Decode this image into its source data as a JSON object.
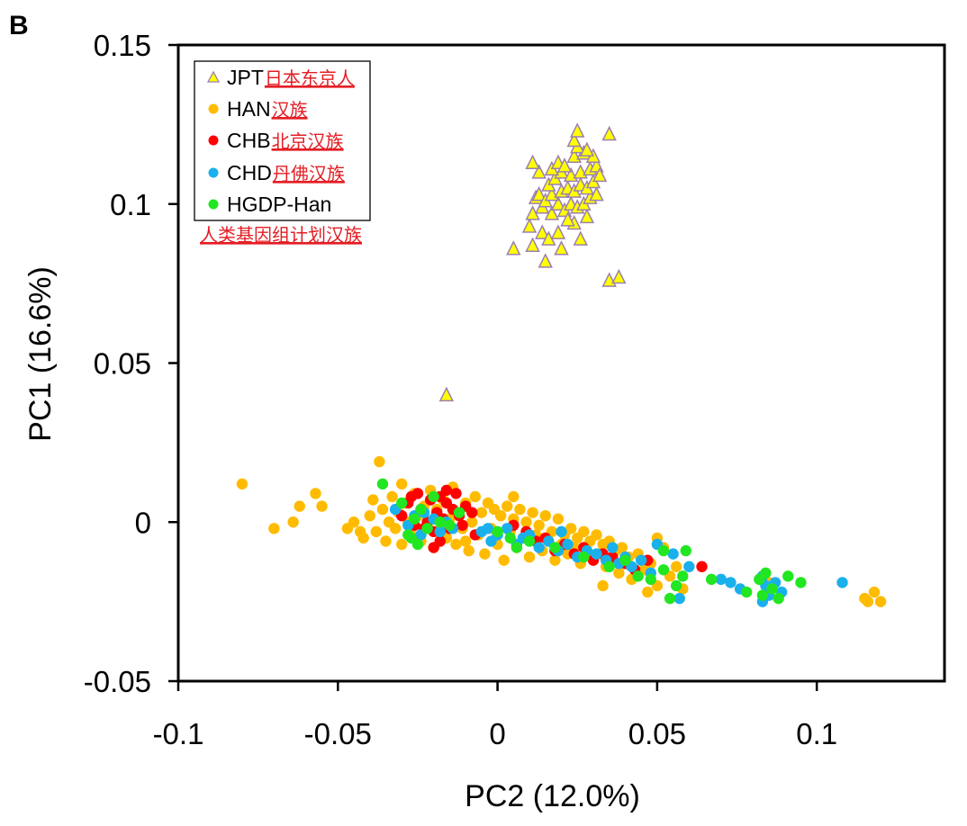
{
  "panel_label": "B",
  "colors": {
    "JPT": "#ffff00",
    "JPT_edge": "#9b7fb0",
    "HAN": "#ffbb00",
    "CHB": "#ff0000",
    "CHD": "#1ab0ec",
    "HGDP-Han": "#22e622",
    "annotation": "#e31e24"
  },
  "legend": {
    "placement": "top-left",
    "entries": [
      {
        "label": "JPT",
        "annotation": "日本东京人",
        "marker": "triangle-icon"
      },
      {
        "label": "HAN",
        "annotation": "汉族",
        "marker": "circle-icon"
      },
      {
        "label": "CHB",
        "annotation": "北京汉族",
        "marker": "circle-icon"
      },
      {
        "label": "CHD",
        "annotation": "丹佛汉族",
        "marker": "circle-icon"
      },
      {
        "label": "HGDP-Han",
        "annotation": "人类基因组计划汉族",
        "marker": "circle-icon"
      }
    ]
  },
  "chart_data": {
    "type": "scatter",
    "title": "",
    "xlabel": "PC2 (12.0%)",
    "ylabel": "PC1 (16.6%)",
    "xlim": [
      -0.1,
      0.14
    ],
    "ylim": [
      -0.05,
      0.15
    ],
    "xticks": [
      "-0.1",
      "-0.05",
      "0",
      "0.05",
      "0.1"
    ],
    "xtick_values": [
      -0.1,
      -0.05,
      0,
      0.05,
      0.1
    ],
    "yticks": [
      "0.15",
      "0.1",
      "0.05",
      "0",
      "-0.05"
    ],
    "ytick_values": [
      0.15,
      0.1,
      0.05,
      0,
      -0.05
    ],
    "grid": false,
    "series": [
      {
        "name": "HAN",
        "points": [
          [
            -0.08,
            0.012
          ],
          [
            -0.07,
            -0.002
          ],
          [
            -0.062,
            0.005
          ],
          [
            -0.064,
            0.0
          ],
          [
            -0.057,
            0.009
          ],
          [
            -0.055,
            0.005
          ],
          [
            -0.047,
            -0.002
          ],
          [
            -0.037,
            0.019
          ],
          [
            -0.045,
            0.0
          ],
          [
            -0.042,
            -0.005
          ],
          [
            -0.04,
            0.002
          ],
          [
            -0.038,
            -0.003
          ],
          [
            -0.036,
            0.004
          ],
          [
            -0.035,
            -0.006
          ],
          [
            -0.034,
            0.0
          ],
          [
            -0.033,
            0.008
          ],
          [
            -0.032,
            -0.002
          ],
          [
            -0.031,
            0.003
          ],
          [
            -0.03,
            -0.007
          ],
          [
            -0.029,
            0.006
          ],
          [
            -0.028,
            0.0
          ],
          [
            -0.027,
            -0.004
          ],
          [
            -0.026,
            0.009
          ],
          [
            -0.025,
            0.002
          ],
          [
            -0.024,
            -0.006
          ],
          [
            -0.023,
            0.005
          ],
          [
            -0.022,
            -0.001
          ],
          [
            -0.021,
            0.01
          ],
          [
            -0.02,
            -0.008
          ],
          [
            -0.019,
            0.004
          ],
          [
            -0.018,
            -0.003
          ],
          [
            -0.017,
            0.007
          ],
          [
            -0.016,
            -0.005
          ],
          [
            -0.015,
            0.001
          ],
          [
            -0.014,
            0.011
          ],
          [
            -0.013,
            -0.007
          ],
          [
            -0.012,
            0.003
          ],
          [
            -0.011,
            -0.002
          ],
          [
            -0.01,
            0.006
          ],
          [
            -0.009,
            -0.009
          ],
          [
            -0.008,
            0.0
          ],
          [
            -0.007,
            0.008
          ],
          [
            -0.006,
            -0.004
          ],
          [
            -0.005,
            0.003
          ],
          [
            -0.004,
            -0.01
          ],
          [
            -0.003,
            0.006
          ],
          [
            -0.002,
            -0.002
          ],
          [
            -0.001,
            0.004
          ],
          [
            0.0,
            -0.007
          ],
          [
            0.001,
            0.002
          ],
          [
            0.002,
            -0.012
          ],
          [
            0.003,
            0.005
          ],
          [
            0.004,
            -0.003
          ],
          [
            0.005,
            0.001
          ],
          [
            0.006,
            -0.008
          ],
          [
            0.007,
            0.004
          ],
          [
            0.008,
            -0.005
          ],
          [
            0.009,
            0.0
          ],
          [
            0.01,
            -0.011
          ],
          [
            0.011,
            0.003
          ],
          [
            0.012,
            -0.004
          ],
          [
            0.013,
            -0.001
          ],
          [
            0.014,
            -0.009
          ],
          [
            0.015,
            0.002
          ],
          [
            0.016,
            -0.006
          ],
          [
            0.017,
            -0.003
          ],
          [
            0.018,
            -0.012
          ],
          [
            0.019,
            0.001
          ],
          [
            0.02,
            -0.007
          ],
          [
            0.021,
            -0.004
          ],
          [
            0.022,
            -0.01
          ],
          [
            0.023,
            -0.002
          ],
          [
            0.024,
            -0.008
          ],
          [
            0.025,
            -0.005
          ],
          [
            0.026,
            -0.013
          ],
          [
            0.027,
            -0.003
          ],
          [
            0.028,
            -0.009
          ],
          [
            0.029,
            -0.006
          ],
          [
            0.03,
            -0.011
          ],
          [
            0.031,
            -0.004
          ],
          [
            0.032,
            -0.01
          ],
          [
            0.033,
            -0.007
          ],
          [
            0.034,
            -0.014
          ],
          [
            0.035,
            -0.006
          ],
          [
            0.036,
            -0.012
          ],
          [
            0.037,
            -0.009
          ],
          [
            0.038,
            -0.016
          ],
          [
            0.039,
            -0.008
          ],
          [
            0.04,
            -0.013
          ],
          [
            0.041,
            -0.011
          ],
          [
            0.042,
            -0.018
          ],
          [
            0.044,
            -0.01
          ],
          [
            0.046,
            -0.015
          ],
          [
            0.048,
            -0.013
          ],
          [
            0.05,
            -0.02
          ],
          [
            0.052,
            -0.008
          ],
          [
            0.054,
            -0.017
          ],
          [
            0.056,
            -0.014
          ],
          [
            0.05,
            -0.005
          ],
          [
            0.033,
            -0.02
          ],
          [
            0.047,
            -0.022
          ],
          [
            0.058,
            -0.021
          ],
          [
            0.085,
            -0.019
          ],
          [
            0.115,
            -0.024
          ],
          [
            0.118,
            -0.022
          ],
          [
            0.12,
            -0.025
          ],
          [
            0.116,
            -0.025
          ],
          [
            -0.043,
            -0.003
          ],
          [
            -0.039,
            0.007
          ],
          [
            -0.03,
            0.012
          ],
          [
            -0.01,
            -0.006
          ],
          [
            0.005,
            0.008
          ]
        ]
      },
      {
        "name": "CHB",
        "points": [
          [
            -0.03,
            0.002
          ],
          [
            -0.028,
            0.006
          ],
          [
            -0.026,
            -0.001
          ],
          [
            -0.025,
            0.009
          ],
          [
            -0.024,
            0.004
          ],
          [
            -0.022,
            0.0
          ],
          [
            -0.021,
            0.007
          ],
          [
            -0.02,
            -0.003
          ],
          [
            -0.019,
            0.003
          ],
          [
            -0.018,
            0.008
          ],
          [
            -0.017,
            0.001
          ],
          [
            -0.016,
            0.006
          ],
          [
            -0.015,
            -0.002
          ],
          [
            -0.014,
            0.004
          ],
          [
            -0.013,
            0.009
          ],
          [
            -0.012,
            0.002
          ],
          [
            -0.011,
            -0.001
          ],
          [
            -0.01,
            0.005
          ],
          [
            -0.02,
            -0.008
          ],
          [
            -0.018,
            -0.006
          ],
          [
            -0.008,
            0.003
          ],
          [
            -0.007,
            -0.004
          ],
          [
            0.005,
            -0.001
          ],
          [
            0.009,
            -0.003
          ],
          [
            0.012,
            -0.006
          ],
          [
            0.015,
            -0.005
          ],
          [
            0.018,
            -0.009
          ],
          [
            0.021,
            -0.007
          ],
          [
            0.024,
            -0.01
          ],
          [
            0.027,
            -0.008
          ],
          [
            0.03,
            -0.012
          ],
          [
            0.033,
            -0.01
          ],
          [
            0.036,
            -0.011
          ],
          [
            0.04,
            -0.013
          ],
          [
            0.043,
            -0.015
          ],
          [
            0.047,
            -0.012
          ],
          [
            0.064,
            -0.014
          ],
          [
            -0.027,
            0.008
          ],
          [
            -0.023,
            -0.002
          ],
          [
            -0.016,
            0.01
          ]
        ]
      },
      {
        "name": "CHD",
        "points": [
          [
            -0.032,
            0.004
          ],
          [
            -0.028,
            -0.001
          ],
          [
            -0.026,
            0.002
          ],
          [
            -0.024,
            -0.004
          ],
          [
            -0.023,
            0.003
          ],
          [
            -0.02,
            0.001
          ],
          [
            -0.018,
            -0.003
          ],
          [
            -0.016,
            0.0
          ],
          [
            -0.014,
            -0.002
          ],
          [
            -0.005,
            -0.003
          ],
          [
            -0.002,
            -0.006
          ],
          [
            0.0,
            -0.004
          ],
          [
            0.003,
            -0.002
          ],
          [
            0.006,
            -0.007
          ],
          [
            0.008,
            -0.005
          ],
          [
            0.01,
            -0.004
          ],
          [
            0.013,
            -0.008
          ],
          [
            0.016,
            -0.006
          ],
          [
            0.019,
            -0.009
          ],
          [
            0.022,
            -0.007
          ],
          [
            0.025,
            -0.011
          ],
          [
            0.028,
            -0.009
          ],
          [
            0.031,
            -0.01
          ],
          [
            0.034,
            -0.012
          ],
          [
            0.036,
            -0.008
          ],
          [
            0.038,
            -0.013
          ],
          [
            0.04,
            -0.011
          ],
          [
            0.042,
            -0.014
          ],
          [
            0.045,
            -0.012
          ],
          [
            0.048,
            -0.016
          ],
          [
            0.05,
            -0.007
          ],
          [
            0.055,
            -0.01
          ],
          [
            0.057,
            -0.024
          ],
          [
            0.06,
            -0.014
          ],
          [
            0.07,
            -0.018
          ],
          [
            0.073,
            -0.019
          ],
          [
            0.076,
            -0.021
          ],
          [
            0.083,
            -0.017
          ],
          [
            0.084,
            -0.02
          ],
          [
            0.085,
            -0.023
          ],
          [
            0.083,
            -0.025
          ],
          [
            0.087,
            -0.019
          ],
          [
            0.089,
            -0.022
          ],
          [
            0.108,
            -0.019
          ],
          [
            -0.003,
            -0.002
          ],
          [
            0.02,
            -0.003
          ]
        ]
      },
      {
        "name": "HGDP-Han",
        "points": [
          [
            -0.036,
            0.012
          ],
          [
            -0.03,
            0.006
          ],
          [
            -0.028,
            -0.004
          ],
          [
            -0.026,
            0.001
          ],
          [
            -0.024,
            0.004
          ],
          [
            -0.022,
            -0.002
          ],
          [
            -0.02,
            0.008
          ],
          [
            -0.018,
            0.0
          ],
          [
            -0.015,
            -0.001
          ],
          [
            -0.027,
            -0.005
          ],
          [
            -0.025,
            -0.007
          ],
          [
            0.0,
            -0.003
          ],
          [
            0.004,
            -0.005
          ],
          [
            0.01,
            -0.006
          ],
          [
            0.018,
            -0.008
          ],
          [
            0.027,
            -0.011
          ],
          [
            0.035,
            -0.014
          ],
          [
            0.04,
            -0.012
          ],
          [
            0.044,
            -0.017
          ],
          [
            0.048,
            -0.018
          ],
          [
            0.052,
            -0.015
          ],
          [
            0.054,
            -0.024
          ],
          [
            0.056,
            -0.02
          ],
          [
            0.058,
            -0.017
          ],
          [
            0.067,
            -0.018
          ],
          [
            0.078,
            -0.022
          ],
          [
            0.082,
            -0.018
          ],
          [
            0.084,
            -0.016
          ],
          [
            0.086,
            -0.021
          ],
          [
            0.088,
            -0.024
          ],
          [
            0.091,
            -0.017
          ],
          [
            0.095,
            -0.019
          ],
          [
            0.083,
            -0.023
          ],
          [
            0.059,
            -0.009
          ],
          [
            0.052,
            -0.009
          ],
          [
            0.006,
            -0.008
          ],
          [
            -0.012,
            0.003
          ]
        ]
      },
      {
        "name": "JPT",
        "points": [
          [
            -0.016,
            0.04
          ],
          [
            0.005,
            0.086
          ],
          [
            0.011,
            0.087
          ],
          [
            0.015,
            0.082
          ],
          [
            0.02,
            0.086
          ],
          [
            0.026,
            0.089
          ],
          [
            0.035,
            0.076
          ],
          [
            0.038,
            0.077
          ],
          [
            0.01,
            0.093
          ],
          [
            0.014,
            0.091
          ],
          [
            0.016,
            0.089
          ],
          [
            0.019,
            0.091
          ],
          [
            0.024,
            0.094
          ],
          [
            0.028,
            0.096
          ],
          [
            0.011,
            0.097
          ],
          [
            0.014,
            0.099
          ],
          [
            0.017,
            0.097
          ],
          [
            0.019,
            0.1
          ],
          [
            0.021,
            0.098
          ],
          [
            0.023,
            0.1
          ],
          [
            0.025,
            0.099
          ],
          [
            0.027,
            0.1
          ],
          [
            0.029,
            0.102
          ],
          [
            0.031,
            0.103
          ],
          [
            0.012,
            0.102
          ],
          [
            0.013,
            0.103
          ],
          [
            0.015,
            0.101
          ],
          [
            0.017,
            0.103
          ],
          [
            0.02,
            0.104
          ],
          [
            0.022,
            0.105
          ],
          [
            0.024,
            0.104
          ],
          [
            0.026,
            0.106
          ],
          [
            0.028,
            0.105
          ],
          [
            0.03,
            0.107
          ],
          [
            0.016,
            0.106
          ],
          [
            0.018,
            0.108
          ],
          [
            0.02,
            0.11
          ],
          [
            0.023,
            0.109
          ],
          [
            0.026,
            0.11
          ],
          [
            0.029,
            0.111
          ],
          [
            0.031,
            0.112
          ],
          [
            0.013,
            0.11
          ],
          [
            0.017,
            0.111
          ],
          [
            0.019,
            0.113
          ],
          [
            0.021,
            0.112
          ],
          [
            0.024,
            0.115
          ],
          [
            0.027,
            0.116
          ],
          [
            0.03,
            0.115
          ],
          [
            0.025,
            0.118
          ],
          [
            0.028,
            0.117
          ],
          [
            0.024,
            0.12
          ],
          [
            0.025,
            0.123
          ],
          [
            0.035,
            0.122
          ],
          [
            0.011,
            0.113
          ],
          [
            0.032,
            0.109
          ],
          [
            0.022,
            0.095
          ]
        ]
      }
    ]
  }
}
